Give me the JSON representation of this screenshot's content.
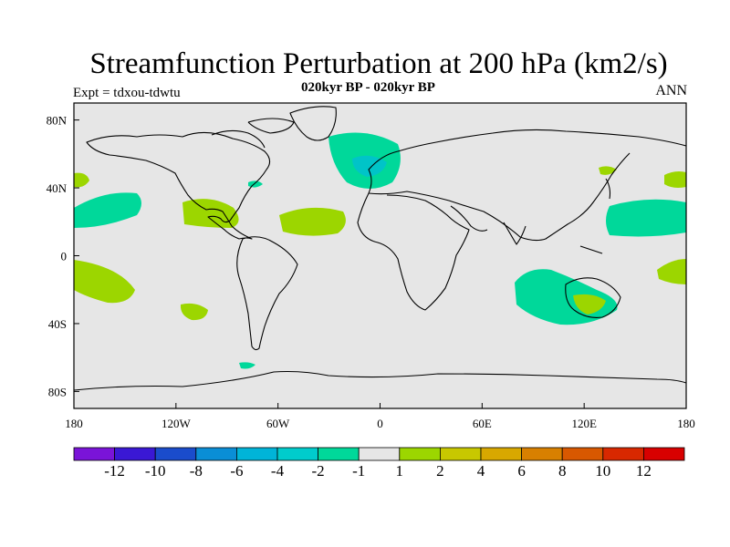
{
  "title": "Streamfunction Perturbation at 200 hPa (km2/s)",
  "subtitle": "020kyr BP - 020kyr BP",
  "left_label": "Expt = tdxou-tdwtu",
  "right_label": "ANN",
  "map": {
    "lon_range": [
      -180,
      180
    ],
    "lat_range": [
      -90,
      90
    ],
    "lon_ticks": [
      {
        "value": -180,
        "label": "180"
      },
      {
        "value": -120,
        "label": "120W"
      },
      {
        "value": -60,
        "label": "60W"
      },
      {
        "value": 0,
        "label": "0"
      },
      {
        "value": 60,
        "label": "60E"
      },
      {
        "value": 120,
        "label": "120E"
      },
      {
        "value": 180,
        "label": "180"
      }
    ],
    "lat_ticks": [
      {
        "value": 80,
        "label": "80N"
      },
      {
        "value": 40,
        "label": "40N"
      },
      {
        "value": 0,
        "label": "0"
      },
      {
        "value": -40,
        "label": "40S"
      },
      {
        "value": -80,
        "label": "80S"
      }
    ],
    "background_color": "#e6e6e6"
  },
  "colorbar": {
    "colors": [
      "#7a14d8",
      "#3a18d4",
      "#1a4ccc",
      "#0a8ed6",
      "#00b4d8",
      "#00cccc",
      "#00d89a",
      "#e6e6e6",
      "#9cd600",
      "#c8c800",
      "#d8a800",
      "#d88000",
      "#d85800",
      "#d82800",
      "#d80000"
    ],
    "labels": [
      "-12",
      "-10",
      "-8",
      "-6",
      "-4",
      "-2",
      "-1",
      "1",
      "2",
      "4",
      "6",
      "8",
      "10",
      "12"
    ]
  }
}
